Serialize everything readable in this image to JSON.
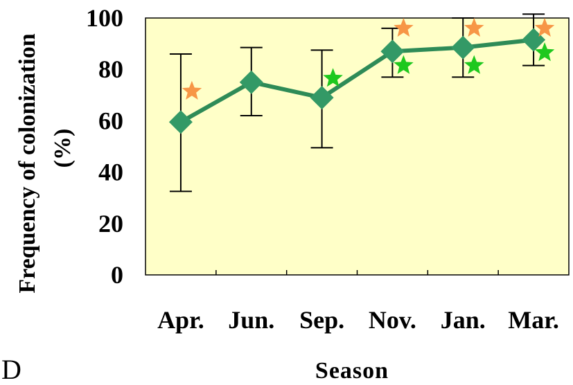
{
  "panel_label": "D",
  "colors": {
    "plot_background": "#ffffc8",
    "series_line": "#2e8b57",
    "marker": "#339966",
    "orange_star": "#f79646",
    "green_star": "#1ec81e",
    "error_bar": "#000000"
  },
  "chart_data": {
    "type": "line",
    "xlabel": "Season",
    "ylabel_lines": [
      "Frequency of colonization",
      "(%)"
    ],
    "ylim": [
      0,
      100
    ],
    "y_ticks": [
      0,
      20,
      40,
      60,
      80,
      100
    ],
    "grid": false,
    "categories": [
      "Apr.",
      "Jun.",
      "Sep.",
      "Nov.",
      "Jan.",
      "Mar."
    ],
    "series": [
      {
        "values": [
          59.5,
          75,
          69,
          87,
          88.5,
          91.5
        ],
        "error_low": [
          32.5,
          62,
          49.5,
          77,
          77,
          81.5
        ],
        "error_high": [
          86,
          88.5,
          87.5,
          96,
          100,
          101.5
        ],
        "marker": "diamond"
      }
    ],
    "annotations": [
      {
        "category": "Apr.",
        "symbol": "star",
        "color": "orange",
        "y": 71.5
      },
      {
        "category": "Sep.",
        "symbol": "star",
        "color": "green",
        "y": 76.5
      },
      {
        "category": "Nov.",
        "symbol": "star",
        "color": "orange",
        "y": 96
      },
      {
        "category": "Nov.",
        "symbol": "star",
        "color": "green",
        "y": 81.5
      },
      {
        "category": "Jan.",
        "symbol": "star",
        "color": "orange",
        "y": 96
      },
      {
        "category": "Jan.",
        "symbol": "star",
        "color": "green",
        "y": 81.5
      },
      {
        "category": "Mar.",
        "symbol": "star",
        "color": "orange",
        "y": 96
      },
      {
        "category": "Mar.",
        "symbol": "star",
        "color": "green",
        "y": 86.5
      }
    ]
  }
}
